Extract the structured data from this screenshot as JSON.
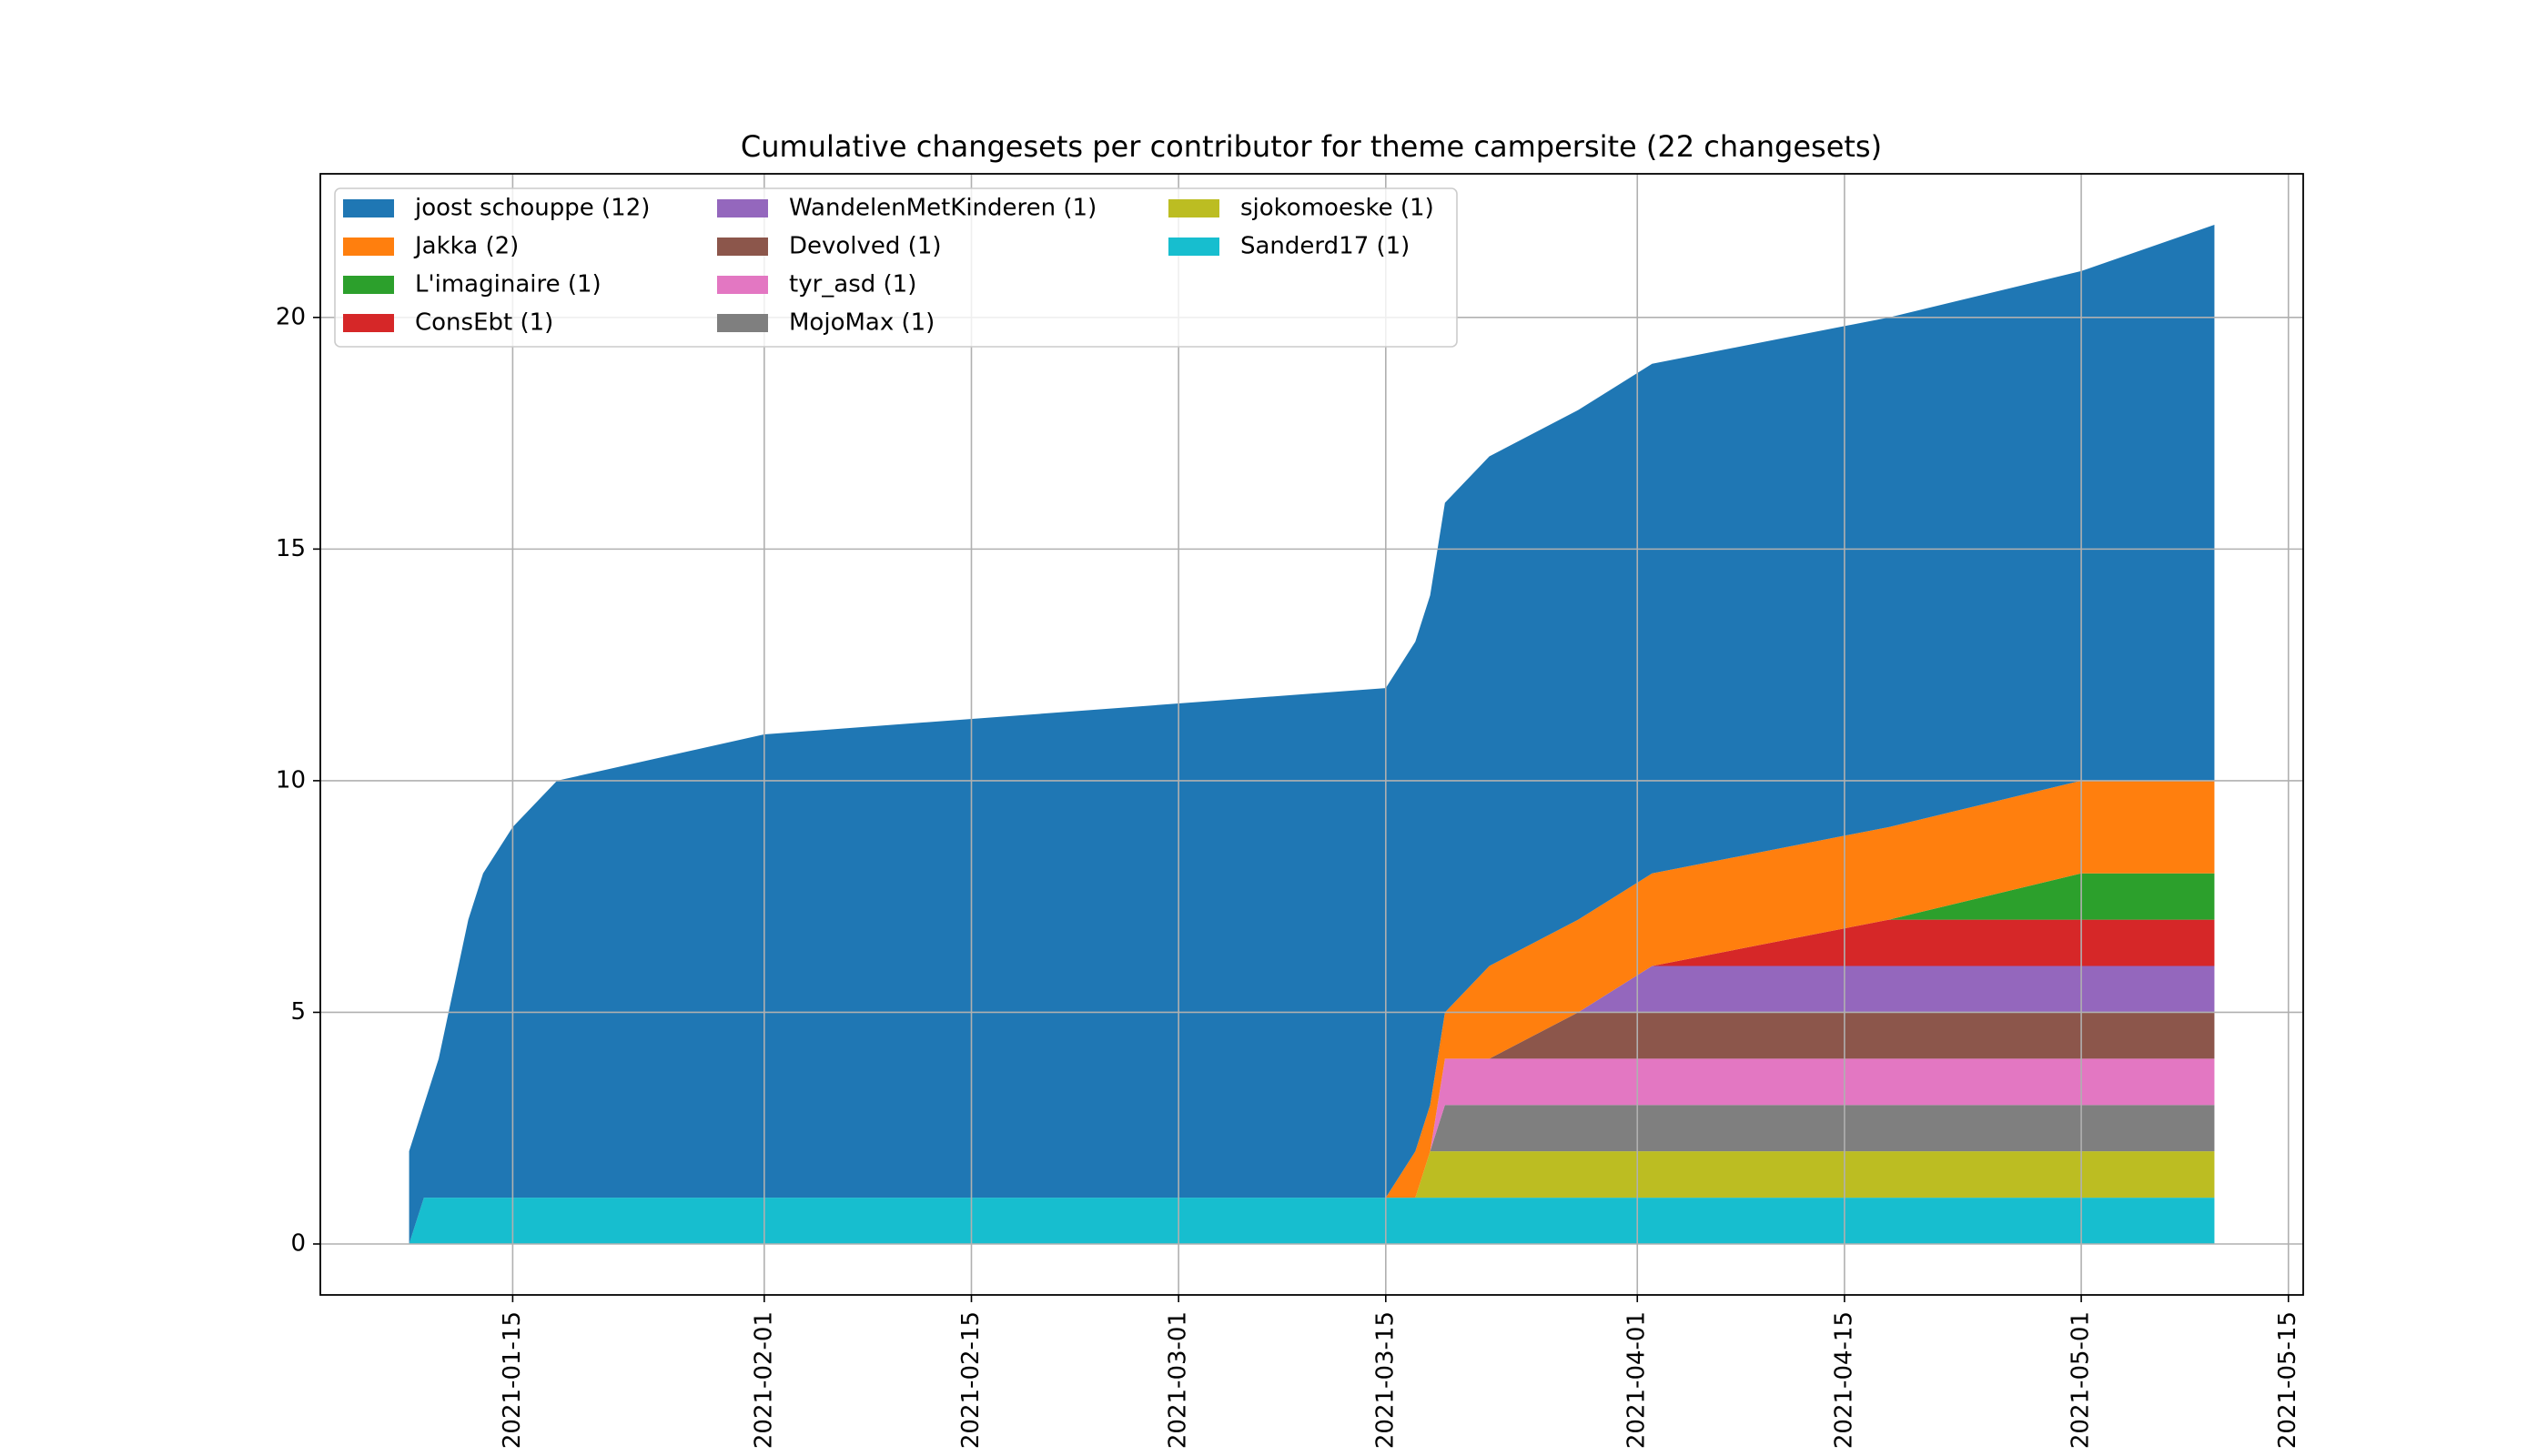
{
  "chart_data": {
    "type": "stackedarea",
    "title": "Cumulative changesets per contributor for theme campersite (22 changesets)",
    "x": [
      "2021-01-08",
      "2021-01-09",
      "2021-01-10",
      "2021-01-12",
      "2021-01-13",
      "2021-01-15",
      "2021-01-18",
      "2021-02-01",
      "2021-03-15",
      "2021-03-17",
      "2021-03-18",
      "2021-03-19",
      "2021-03-22",
      "2021-03-28",
      "2021-04-02",
      "2021-04-18",
      "2021-05-01",
      "2021-05-10"
    ],
    "series": [
      {
        "name": "joost schouppe (12)",
        "color": "#1f77b4",
        "values": [
          2,
          2,
          3,
          6,
          7,
          8,
          9,
          10,
          11,
          11,
          11,
          11,
          11,
          11,
          11,
          11,
          11,
          12
        ]
      },
      {
        "name": "Jakka (2)",
        "color": "#ff7f0e",
        "values": [
          0,
          0,
          0,
          0,
          0,
          0,
          0,
          0,
          0,
          1,
          1,
          1,
          2,
          2,
          2,
          2,
          2,
          2
        ]
      },
      {
        "name": "L'imaginaire (1)",
        "color": "#2ca02c",
        "values": [
          0,
          0,
          0,
          0,
          0,
          0,
          0,
          0,
          0,
          0,
          0,
          0,
          0,
          0,
          0,
          0,
          1,
          1
        ]
      },
      {
        "name": "ConsEbt (1)",
        "color": "#d62728",
        "values": [
          0,
          0,
          0,
          0,
          0,
          0,
          0,
          0,
          0,
          0,
          0,
          0,
          0,
          0,
          0,
          1,
          1,
          1
        ]
      },
      {
        "name": "WandelenMetKinderen (1)",
        "color": "#9467bd",
        "values": [
          0,
          0,
          0,
          0,
          0,
          0,
          0,
          0,
          0,
          0,
          0,
          0,
          0,
          0,
          1,
          1,
          1,
          1
        ]
      },
      {
        "name": "Devolved (1)",
        "color": "#8c564b",
        "values": [
          0,
          0,
          0,
          0,
          0,
          0,
          0,
          0,
          0,
          0,
          0,
          0,
          0,
          1,
          1,
          1,
          1,
          1
        ]
      },
      {
        "name": "tyr_asd (1)",
        "color": "#e377c2",
        "values": [
          0,
          0,
          0,
          0,
          0,
          0,
          0,
          0,
          0,
          0,
          0,
          1,
          1,
          1,
          1,
          1,
          1,
          1
        ]
      },
      {
        "name": "MojoMax (1)",
        "color": "#7f7f7f",
        "values": [
          0,
          0,
          0,
          0,
          0,
          0,
          0,
          0,
          0,
          0,
          0,
          1,
          1,
          1,
          1,
          1,
          1,
          1
        ]
      },
      {
        "name": "sjokomoeske (1)",
        "color": "#bcbd22",
        "values": [
          0,
          0,
          0,
          0,
          0,
          0,
          0,
          0,
          0,
          0,
          1,
          1,
          1,
          1,
          1,
          1,
          1,
          1
        ]
      },
      {
        "name": "Sanderd17 (1)",
        "color": "#17becf",
        "values": [
          0,
          1,
          1,
          1,
          1,
          1,
          1,
          1,
          1,
          1,
          1,
          1,
          1,
          1,
          1,
          1,
          1,
          1
        ]
      }
    ],
    "xlim": [
      "2021-01-02",
      "2021-05-16"
    ],
    "xticks": [
      "2021-01-15",
      "2021-02-01",
      "2021-02-15",
      "2021-03-01",
      "2021-03-15",
      "2021-04-01",
      "2021-04-15",
      "2021-05-01",
      "2021-05-15"
    ],
    "ylim": [
      -1.1,
      23.1
    ],
    "yticks": [
      0,
      5,
      10,
      15,
      20
    ],
    "grid": true,
    "legend": "upper left"
  }
}
